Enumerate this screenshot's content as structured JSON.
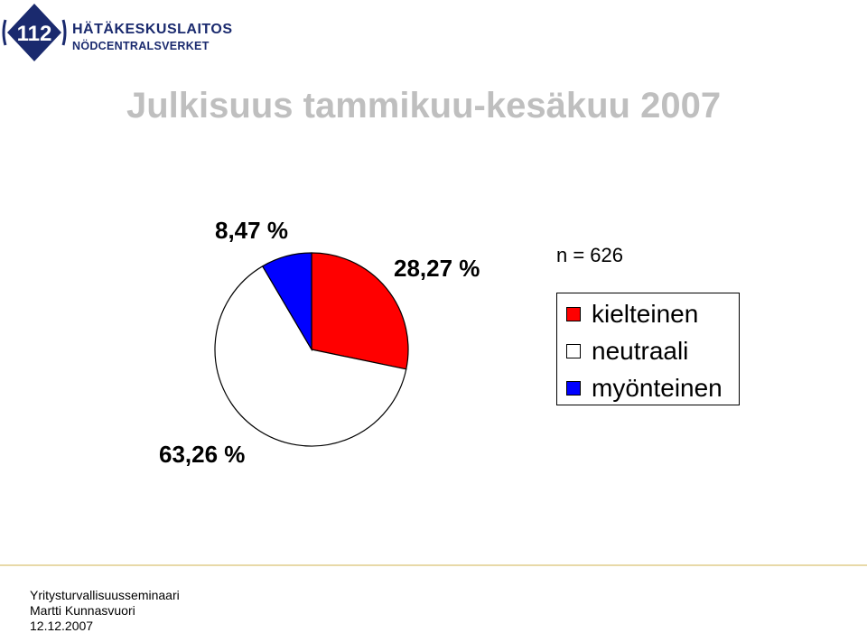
{
  "logo": {
    "number": "112",
    "name_line1": "HÄTÄKESKUSLAITOS",
    "name_line2": "NÖDCENTRALSVERKET",
    "colors": {
      "primary": "#1a2a6e"
    }
  },
  "title": "Julkisuus tammikuu-kesäkuu 2007",
  "chart_data": {
    "type": "pie",
    "title": "",
    "sample_size_label": "n = 626",
    "slices": [
      {
        "name": "kielteinen",
        "value": 28.27,
        "label": "28,27 %",
        "color": "#ff0000"
      },
      {
        "name": "neutraali",
        "value": 63.26,
        "label": "63,26 %",
        "color": "#ffffff"
      },
      {
        "name": "myönteinen",
        "value": 8.47,
        "label": "8,47 %",
        "color": "#0000ff"
      }
    ],
    "legend": [
      "kielteinen",
      "neutraali",
      "myönteinen"
    ],
    "legend_position": "right"
  },
  "footer": {
    "event": "Yritysturvallisuusseminaari",
    "author": "Martti Kunnasvuori",
    "date": "12.12.2007"
  }
}
